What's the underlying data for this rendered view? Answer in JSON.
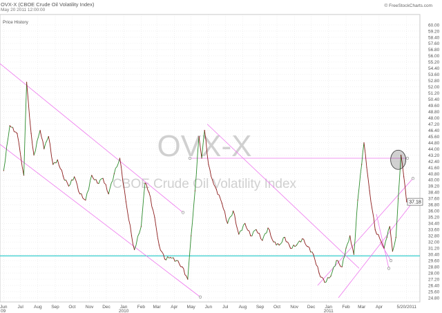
{
  "header": {
    "title": "OVX-X (CBOE Crude Oil Volatility Index)",
    "date": "May 20 2011 12:00:00",
    "site": "© FreeStockCharts.com"
  },
  "panel_label": "Price History",
  "watermark": {
    "symbol": "OVX-X",
    "name": "CBOE Crude Oil Volatility Index"
  },
  "last_price": "37.18",
  "colors": {
    "price_up": "#2a8a2a",
    "price_down": "#8b1a1a",
    "trendline": "#ee77ee",
    "support": "#33cccc",
    "grid": "#d9d9d9",
    "watermark": "#d0d0d0"
  },
  "chart_data": {
    "type": "line",
    "title": "OVX-X (CBOE Crude Oil Volatility Index)",
    "x_tick_labels": [
      "Jun",
      "Jul",
      "Aug",
      "Sep",
      "Oct",
      "Nov",
      "Dec",
      "Jan",
      "Feb",
      "Mar",
      "Apr",
      "May",
      "Jun",
      "Jul",
      "Aug",
      "Sep",
      "Oct",
      "Nov",
      "Dec",
      "Jan",
      "Feb",
      "Mar",
      "Apr",
      "5/20/2011"
    ],
    "year_labels": [
      "09",
      "2010",
      "2011"
    ],
    "y_tick_labels": [
      "60.00",
      "59.20",
      "58.40",
      "57.60",
      "56.80",
      "56.00",
      "55.20",
      "54.40",
      "53.60",
      "52.80",
      "52.00",
      "51.20",
      "50.40",
      "49.60",
      "48.80",
      "48.00",
      "47.20",
      "46.40",
      "45.60",
      "44.80",
      "44.00",
      "43.20",
      "42.40",
      "41.60",
      "40.80",
      "40.00",
      "39.20",
      "38.40",
      "37.60",
      "36.80",
      "36.00",
      "35.20",
      "34.40",
      "33.60",
      "32.80",
      "32.00",
      "31.20",
      "30.40",
      "29.60",
      "28.80",
      "28.00",
      "27.20",
      "26.40",
      "25.60",
      "24.80"
    ],
    "ylim": [
      24.8,
      60.0
    ],
    "grid": true,
    "series": [
      {
        "name": "OVX-X",
        "x": [
          "2009-06-01",
          "2009-06-12",
          "2009-06-25",
          "2009-07-07",
          "2009-07-12",
          "2009-07-20",
          "2009-07-25",
          "2009-08-05",
          "2009-08-12",
          "2009-08-20",
          "2009-08-28",
          "2009-09-05",
          "2009-09-15",
          "2009-09-25",
          "2009-10-05",
          "2009-10-15",
          "2009-10-25",
          "2009-11-05",
          "2009-11-15",
          "2009-11-25",
          "2009-12-05",
          "2009-12-15",
          "2009-12-25",
          "2010-01-05",
          "2010-01-15",
          "2010-01-20",
          "2010-02-01",
          "2010-02-08",
          "2010-02-15",
          "2010-02-25",
          "2010-03-05",
          "2010-03-15",
          "2010-03-25",
          "2010-04-05",
          "2010-04-15",
          "2010-04-25",
          "2010-05-01",
          "2010-05-08",
          "2010-05-15",
          "2010-05-20",
          "2010-05-25",
          "2010-06-01",
          "2010-06-08",
          "2010-06-15",
          "2010-06-25",
          "2010-07-05",
          "2010-07-15",
          "2010-07-25",
          "2010-08-05",
          "2010-08-15",
          "2010-08-25",
          "2010-09-05",
          "2010-09-15",
          "2010-09-25",
          "2010-10-05",
          "2010-10-15",
          "2010-10-25",
          "2010-11-05",
          "2010-11-15",
          "2010-11-25",
          "2010-12-05",
          "2010-12-15",
          "2010-12-25",
          "2011-01-05",
          "2011-01-15",
          "2011-01-25",
          "2011-02-01",
          "2011-02-08",
          "2011-02-15",
          "2011-02-22",
          "2011-03-01",
          "2011-03-05",
          "2011-03-10",
          "2011-03-15",
          "2011-03-25",
          "2011-04-05",
          "2011-04-10",
          "2011-04-15",
          "2011-04-20",
          "2011-04-25",
          "2011-05-01",
          "2011-05-05",
          "2011-05-10",
          "2011-05-15",
          "2011-05-20"
        ],
        "values": [
          41.2,
          47.0,
          46.0,
          40.6,
          52.6,
          46.0,
          43.2,
          46.4,
          44.0,
          45.6,
          42.0,
          42.6,
          40.5,
          39.2,
          40.4,
          38.2,
          37.4,
          40.6,
          39.6,
          40.2,
          38.2,
          40.8,
          42.8,
          37.2,
          32.8,
          31.0,
          34.0,
          39.6,
          38.4,
          35.2,
          31.6,
          29.8,
          30.0,
          29.6,
          28.8,
          27.2,
          32.8,
          38.6,
          45.6,
          42.8,
          46.4,
          42.0,
          40.0,
          38.8,
          37.0,
          34.4,
          36.0,
          33.0,
          34.4,
          32.8,
          33.6,
          32.2,
          33.8,
          32.0,
          31.6,
          32.6,
          31.2,
          31.6,
          32.4,
          31.4,
          30.4,
          28.0,
          26.8,
          27.6,
          29.6,
          28.8,
          31.2,
          32.8,
          30.4,
          37.4,
          42.0,
          44.8,
          41.6,
          38.6,
          33.6,
          32.0,
          31.2,
          32.6,
          34.0,
          30.8,
          32.6,
          37.6,
          43.2,
          40.4,
          37.18
        ]
      }
    ]
  }
}
